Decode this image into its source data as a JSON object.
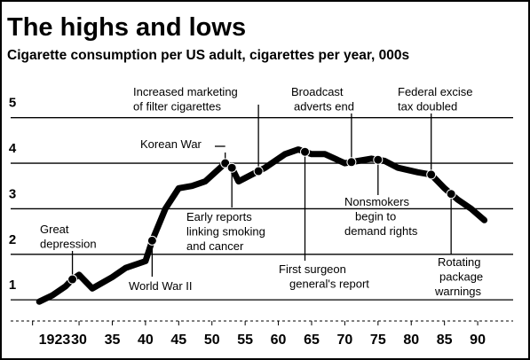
{
  "chart_data": {
    "type": "line",
    "title": "The highs and lows",
    "subtitle": "Cigarette consumption per US adult, cigarettes per year, 000s",
    "x": [
      1924,
      1926,
      1928,
      1929,
      1930,
      1932,
      1935,
      1937,
      1940,
      1941,
      1943,
      1945,
      1947,
      1949,
      1952,
      1953,
      1954,
      1956,
      1958,
      1961,
      1963,
      1965,
      1967,
      1970,
      1972,
      1974,
      1976,
      1978,
      1981,
      1983,
      1985,
      1987,
      1989,
      1991
    ],
    "series": [
      {
        "name": "Cigarette consumption",
        "color": "#000000",
        "values": [
          0.96,
          1.1,
          1.3,
          1.45,
          1.55,
          1.25,
          1.5,
          1.7,
          1.85,
          2.3,
          3.0,
          3.45,
          3.5,
          3.6,
          4.0,
          3.9,
          3.6,
          3.75,
          3.9,
          4.2,
          4.3,
          4.2,
          4.2,
          4.0,
          4.05,
          4.1,
          4.05,
          3.9,
          3.8,
          3.75,
          3.45,
          3.2,
          3.0,
          2.75
        ]
      }
    ],
    "xlim": [
      1921,
      1995
    ],
    "xticks": [
      1923,
      {
        "value": 1930,
        "label": "30"
      },
      {
        "value": 1935,
        "label": "35"
      },
      {
        "value": 1940,
        "label": "40"
      },
      {
        "value": 1945,
        "label": "45"
      },
      {
        "value": 1950,
        "label": "50"
      },
      {
        "value": 1955,
        "label": "55"
      },
      {
        "value": 1960,
        "label": "60"
      },
      {
        "value": 1965,
        "label": "65"
      },
      {
        "value": 1970,
        "label": "70"
      },
      {
        "value": 1975,
        "label": "75"
      },
      {
        "value": 1980,
        "label": "80"
      },
      {
        "value": 1985,
        "label": "85"
      },
      {
        "value": 1990,
        "label": "90"
      }
    ],
    "ylim": [
      0.75,
      5.5
    ],
    "yticks": [
      1,
      2,
      3,
      4,
      5
    ],
    "grid": true,
    "annotations": [
      {
        "x": 1929,
        "text": [
          "Great",
          "depression"
        ]
      },
      {
        "x": 1941,
        "text": [
          "World War II"
        ]
      },
      {
        "x": 1952,
        "text": [
          "Korean War"
        ]
      },
      {
        "x": 1953,
        "text": [
          "Early reports",
          "linking smoking",
          "and cancer"
        ]
      },
      {
        "x": 1957,
        "text": [
          "Increased marketing",
          "of filter cigarettes"
        ]
      },
      {
        "x": 1964,
        "text": [
          "First surgeon",
          "general's report"
        ]
      },
      {
        "x": 1971,
        "text": [
          "Broadcast",
          "adverts end"
        ]
      },
      {
        "x": 1975,
        "text": [
          "Nonsmokers",
          "begin to",
          "demand rights"
        ]
      },
      {
        "x": 1983,
        "text": [
          "Federal excise",
          "tax doubled"
        ]
      },
      {
        "x": 1986,
        "text": [
          "Rotating",
          "package",
          "warnings"
        ]
      }
    ]
  }
}
